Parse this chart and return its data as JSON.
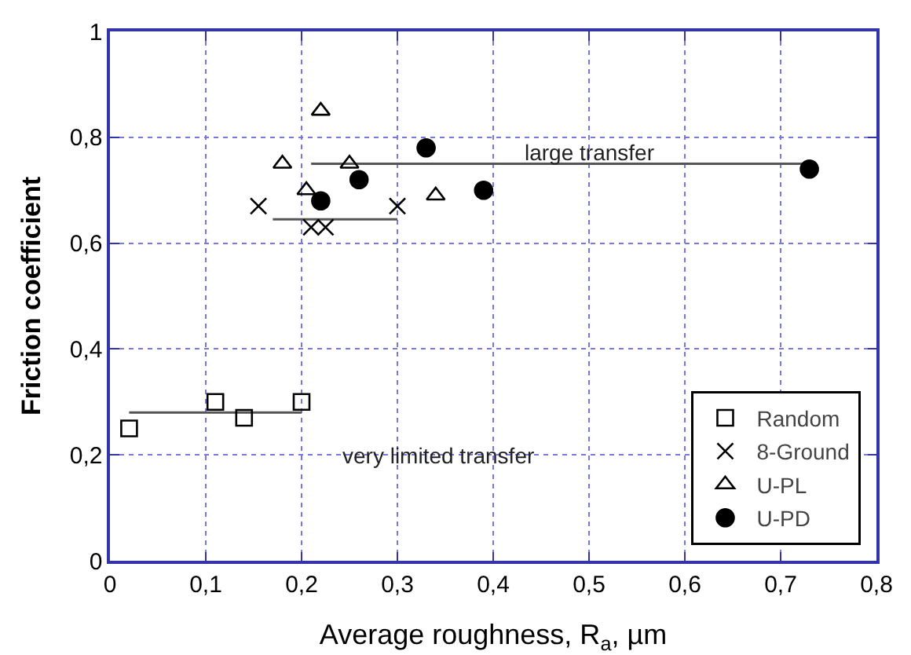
{
  "chart_data": {
    "type": "scatter",
    "xlabel": "Average roughness, R$_{a}$, µm",
    "ylabel": "Friction coefficient",
    "xlim": [
      0,
      0.8
    ],
    "ylim": [
      0,
      1
    ],
    "xticks": [
      0,
      {
        "value": 0.1,
        "label": "0,1"
      },
      {
        "value": 0.2,
        "label": "0,2"
      },
      {
        "value": 0.3,
        "label": "0,3"
      },
      {
        "value": 0.4,
        "label": "0,4"
      },
      {
        "value": 0.5,
        "label": "0,5"
      },
      {
        "value": 0.6,
        "label": "0,6"
      },
      {
        "value": 0.7,
        "label": "0,7"
      },
      {
        "value": 0.8,
        "label": "0,8"
      }
    ],
    "yticks": [
      0,
      {
        "value": 0.2,
        "label": "0,2"
      },
      {
        "value": 0.4,
        "label": "0,4"
      },
      {
        "value": 0.6,
        "label": "0,6"
      },
      {
        "value": 0.8,
        "label": "0,8"
      },
      1
    ],
    "grid": true,
    "legend": "bottom right",
    "series": [
      {
        "name": "Random",
        "color": "#000000",
        "marker": "square",
        "x": [
          0.02,
          0.11,
          0.14,
          0.2
        ],
        "values": [
          0.25,
          0.3,
          0.27,
          0.3
        ]
      },
      {
        "name": "8-Ground",
        "color": "#000000",
        "marker": "cross",
        "x": [
          0.155,
          0.21,
          0.225,
          0.3
        ],
        "values": [
          0.67,
          0.63,
          0.63,
          0.67
        ]
      },
      {
        "name": "U-PL",
        "color": "#000000",
        "marker": "triangle",
        "x": [
          0.18,
          0.205,
          0.22,
          0.25,
          0.34
        ],
        "values": [
          0.75,
          0.7,
          0.85,
          0.75,
          0.69
        ]
      },
      {
        "name": "U-PD",
        "color": "#000000",
        "marker": "circle",
        "x": [
          0.22,
          0.26,
          0.33,
          0.39,
          0.73
        ],
        "values": [
          0.68,
          0.72,
          0.78,
          0.7,
          0.74
        ]
      },
      {
        "type": "line",
        "color": "#555555",
        "x": [
          0.02,
          0.2
        ],
        "values": [
          0.28,
          0.28
        ]
      },
      {
        "type": "line",
        "color": "#555555",
        "x": [
          0.17,
          0.3
        ],
        "values": [
          0.645,
          0.645
        ]
      },
      {
        "type": "line",
        "color": "#555555",
        "x": [
          0.21,
          0.73
        ],
        "values": [
          0.75,
          0.75
        ]
      }
    ],
    "annotations": [
      "large transfer",
      "very limited transfer"
    ]
  }
}
